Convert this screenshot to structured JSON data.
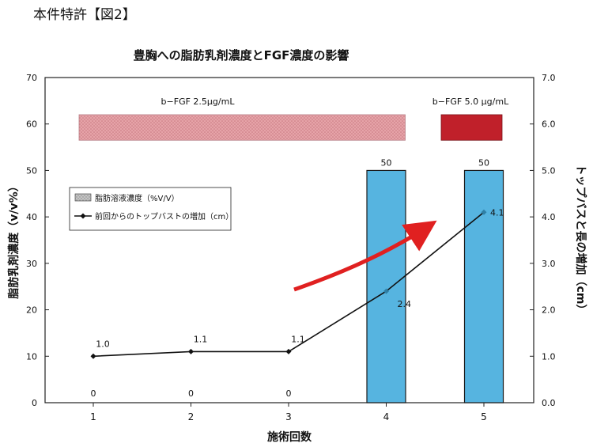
{
  "figure_label": "本件特許【図2】",
  "chart_data": {
    "type": "bar+line",
    "title": "豊胸への脂肪乳剤濃度とFGF濃度の影響",
    "xlabel": "施術回数",
    "ylabel_left": "脂肪乳剤濃度（v/v%）",
    "ylabel_right": "トップバスと長の増加（cm）",
    "categories": [
      "1",
      "2",
      "3",
      "4",
      "5"
    ],
    "y_left_lim": [
      0,
      70
    ],
    "y_left_ticks": [
      "0",
      "10",
      "20",
      "30",
      "40",
      "50",
      "60",
      "70"
    ],
    "y_right_lim": [
      0,
      7
    ],
    "y_right_ticks": [
      "0.0",
      "1.0",
      "2.0",
      "3.0",
      "4.0",
      "5.0",
      "6.0",
      "7.0"
    ],
    "bar_series": {
      "name": "脂肪溶液濃度（%V/V）",
      "values": [
        0,
        0,
        0,
        50,
        50
      ],
      "labels": [
        "0",
        "0",
        "0",
        "50",
        "50"
      ],
      "color": "#56b4e0"
    },
    "line_series": {
      "name": "前回からのトップバストの増加（cm）",
      "values": [
        1.0,
        1.1,
        1.1,
        2.4,
        4.1
      ],
      "labels": [
        "1.0",
        "1.1",
        "1.1",
        "2.4",
        "4.1"
      ],
      "color": "#111111"
    },
    "annotations": [
      {
        "text": "b−FGF 2.5μg/mL",
        "from": 1,
        "to": 4,
        "color": "#e8a0a8"
      },
      {
        "text": "b−FGF 5.0 μg/mL",
        "from": 5,
        "to": 5,
        "color": "#c0202a"
      }
    ],
    "arrow_color": "#e02020",
    "legend_position": "upper-left",
    "grid": false
  }
}
